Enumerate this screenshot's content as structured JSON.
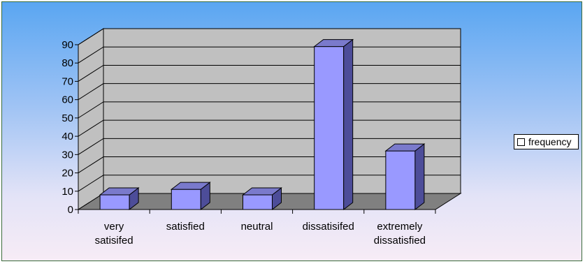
{
  "chart_data": {
    "type": "bar",
    "categories": [
      [
        "very",
        "satisifed"
      ],
      [
        "satisfied"
      ],
      [
        "neutral"
      ],
      [
        "dissatisifed"
      ],
      [
        "extremely",
        "dissatisfied"
      ]
    ],
    "series": [
      {
        "name": "frequency",
        "values": [
          8,
          11,
          8,
          89,
          32
        ],
        "color": "#9999ff"
      }
    ],
    "ylim": [
      0,
      90
    ],
    "yticks": [
      "0",
      "10",
      "20",
      "30",
      "40",
      "50",
      "60",
      "70",
      "80",
      "90"
    ],
    "grid": true,
    "legend": "right",
    "colors": {
      "bar_front": "#9999ff",
      "bar_side": "#4d4d99",
      "bar_top": "#7a7acc",
      "wall": "#c0c0c0",
      "floor": "#808080"
    }
  }
}
